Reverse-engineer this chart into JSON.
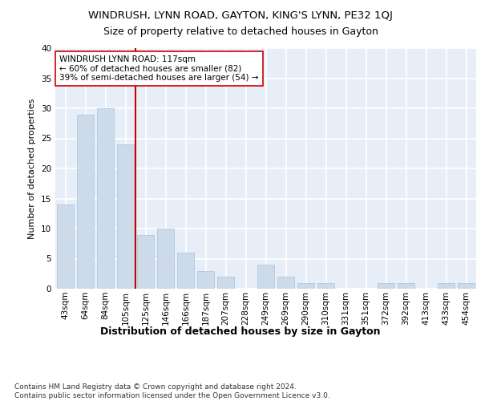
{
  "title1": "WINDRUSH, LYNN ROAD, GAYTON, KING'S LYNN, PE32 1QJ",
  "title2": "Size of property relative to detached houses in Gayton",
  "xlabel": "Distribution of detached houses by size in Gayton",
  "ylabel": "Number of detached properties",
  "footnote": "Contains HM Land Registry data © Crown copyright and database right 2024.\nContains public sector information licensed under the Open Government Licence v3.0.",
  "categories": [
    "43sqm",
    "64sqm",
    "84sqm",
    "105sqm",
    "125sqm",
    "146sqm",
    "166sqm",
    "187sqm",
    "207sqm",
    "228sqm",
    "249sqm",
    "269sqm",
    "290sqm",
    "310sqm",
    "331sqm",
    "351sqm",
    "372sqm",
    "392sqm",
    "413sqm",
    "433sqm",
    "454sqm"
  ],
  "values": [
    14,
    29,
    30,
    24,
    9,
    10,
    6,
    3,
    2,
    0,
    4,
    2,
    1,
    1,
    0,
    0,
    1,
    1,
    0,
    1,
    1
  ],
  "bar_color": "#ccdaea",
  "bar_edge_color": "#a8c4d8",
  "vline_x_index": 4,
  "vline_color": "#cc0000",
  "annotation_text": "WINDRUSH LYNN ROAD: 117sqm\n← 60% of detached houses are smaller (82)\n39% of semi-detached houses are larger (54) →",
  "annotation_box_color": "white",
  "annotation_box_edge_color": "#cc0000",
  "ylim": [
    0,
    40
  ],
  "yticks": [
    0,
    5,
    10,
    15,
    20,
    25,
    30,
    35,
    40
  ],
  "background_color": "#e8eef8",
  "grid_color": "white",
  "title1_fontsize": 9.5,
  "title2_fontsize": 9,
  "xlabel_fontsize": 9,
  "ylabel_fontsize": 8,
  "tick_fontsize": 7.5,
  "annotation_fontsize": 7.5,
  "footnote_fontsize": 6.5
}
